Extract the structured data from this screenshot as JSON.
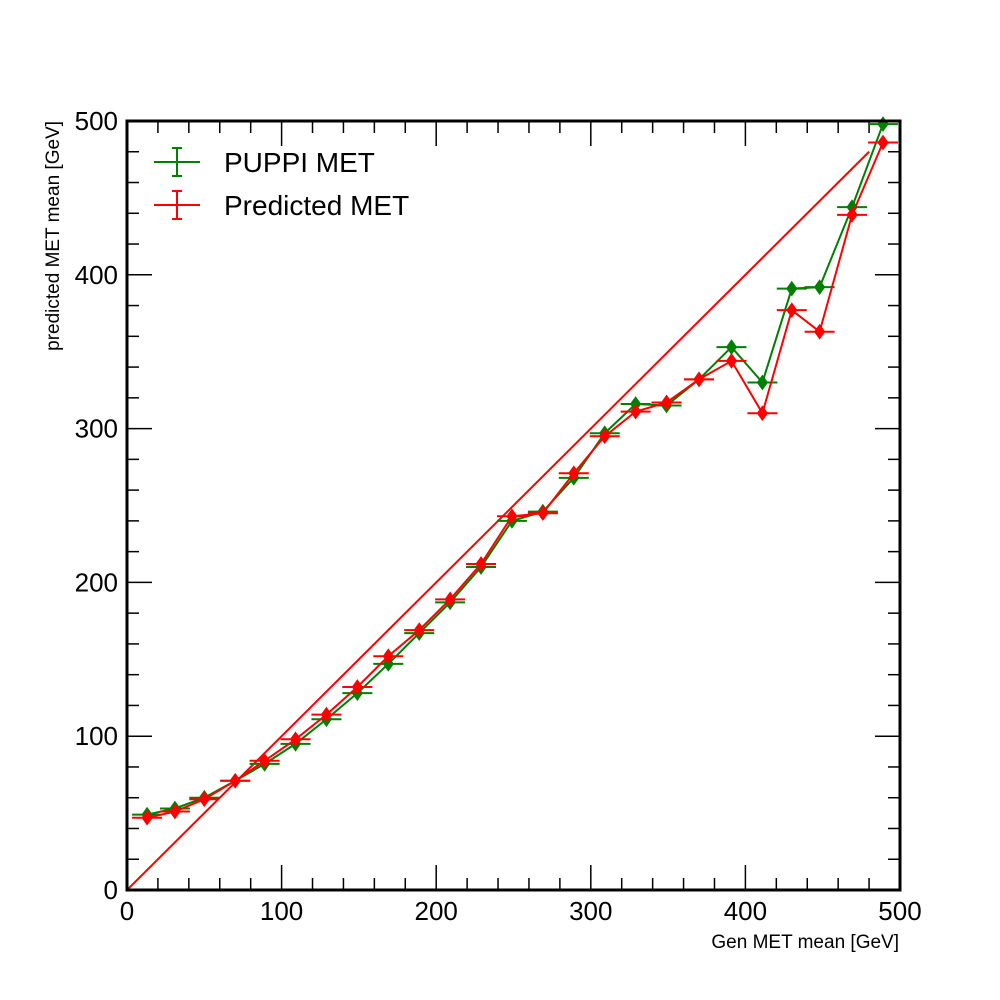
{
  "chart_data": {
    "type": "line",
    "title": "",
    "xlabel": "Gen MET mean [GeV]",
    "ylabel": "predicted MET mean [GeV]",
    "xlim": [
      0,
      500
    ],
    "ylim": [
      0,
      500
    ],
    "xticks": [
      "0",
      "100",
      "200",
      "300",
      "400",
      "500"
    ],
    "yticks": [
      "0",
      "100",
      "200",
      "300",
      "400",
      "500"
    ],
    "grid": false,
    "legend_position": "top-left",
    "reference_line": {
      "x": [
        0,
        480
      ],
      "y": [
        0,
        480
      ],
      "color": "#ff0000"
    },
    "series": [
      {
        "name": "PUPPI MET",
        "color": "#008000",
        "x": [
          13,
          31,
          50,
          70,
          89,
          109,
          129,
          149,
          169,
          189,
          209,
          229,
          249,
          269,
          289,
          309,
          329,
          349,
          370,
          391,
          411,
          430,
          448,
          469,
          489
        ],
        "y": [
          49,
          53,
          60,
          71,
          82,
          95,
          111,
          128,
          147,
          167,
          187,
          210,
          240,
          246,
          268,
          297,
          316,
          315,
          332,
          353,
          330,
          391,
          392,
          444,
          498
        ]
      },
      {
        "name": "Predicted MET",
        "color": "#ff0000",
        "x": [
          13,
          31,
          50,
          70,
          89,
          109,
          129,
          149,
          169,
          189,
          209,
          229,
          249,
          269,
          289,
          309,
          329,
          349,
          370,
          391,
          411,
          430,
          448,
          469,
          489
        ],
        "y": [
          47,
          51,
          59,
          71,
          84,
          98,
          114,
          132,
          152,
          169,
          189,
          212,
          243,
          245,
          271,
          295,
          311,
          317,
          332,
          344,
          310,
          377,
          363,
          439,
          486
        ]
      }
    ]
  }
}
